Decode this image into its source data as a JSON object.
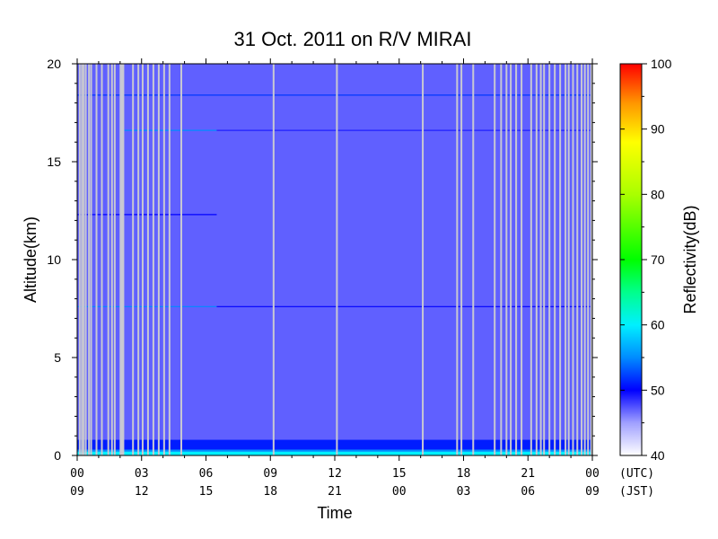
{
  "chart_data": {
    "type": "heatmap",
    "title": "31 Oct. 2011  on R/V MIRAI",
    "xlabel": "Time",
    "ylabel": "Altitude(km)",
    "colorbar_label": "Reflectivity(dB)",
    "x_utc_ticks": [
      "00",
      "03",
      "06",
      "09",
      "12",
      "15",
      "18",
      "21",
      "00"
    ],
    "x_jst_ticks": [
      "09",
      "12",
      "15",
      "18",
      "21",
      "00",
      "03",
      "06",
      "09"
    ],
    "x_tick_hours": [
      0,
      3,
      6,
      9,
      12,
      15,
      18,
      21,
      24
    ],
    "x_unit_utc": "(UTC)",
    "x_unit_jst": "(JST)",
    "xlim_hours": [
      0,
      24
    ],
    "ylim_km": [
      0,
      20
    ],
    "y_ticks": [
      0,
      5,
      10,
      15,
      20
    ],
    "y_tick_labels": [
      "0",
      "5",
      "10",
      "15",
      "20"
    ],
    "colorbar_ticks": [
      40,
      50,
      60,
      70,
      80,
      90,
      100
    ],
    "colorbar_tick_labels": [
      "40",
      "50",
      "60",
      "70",
      "80",
      "90",
      "100"
    ],
    "colorbar_range_db": [
      40,
      100
    ],
    "background_reflectivity_db": 47,
    "near_surface_layers": [
      {
        "bottom_km": 0.0,
        "top_km": 0.2,
        "reflectivity_db": 60
      },
      {
        "bottom_km": 0.2,
        "top_km": 0.3,
        "reflectivity_db": 55
      },
      {
        "bottom_km": 0.3,
        "top_km": 0.8,
        "reflectivity_db": 51
      }
    ],
    "horizontal_lines": [
      {
        "altitude_km": 18.4,
        "start_hour": 0,
        "end_hour": 24,
        "reflectivity_db": 52
      },
      {
        "altitude_km": 16.6,
        "start_hour": 2.2,
        "end_hour": 6.5,
        "reflectivity_db": 55
      },
      {
        "altitude_km": 16.6,
        "start_hour": 6.5,
        "end_hour": 24,
        "reflectivity_db": 49
      },
      {
        "altitude_km": 12.3,
        "start_hour": 0,
        "end_hour": 6.5,
        "reflectivity_db": 50
      },
      {
        "altitude_km": 7.6,
        "start_hour": 0,
        "end_hour": 6.5,
        "reflectivity_db": 55
      },
      {
        "altitude_km": 7.6,
        "start_hour": 6.5,
        "end_hour": 24,
        "reflectivity_db": 50
      }
    ],
    "missing_data_hours": [
      0.12,
      0.22,
      0.3,
      0.4,
      0.55,
      0.65,
      0.9,
      1.15,
      1.45,
      1.62,
      1.75,
      2.02,
      2.08,
      2.15,
      2.6,
      2.85,
      3.05,
      3.3,
      3.55,
      3.8,
      4.05,
      4.3,
      4.85,
      9.15,
      12.1,
      16.1,
      17.7,
      17.9,
      18.45,
      19.45,
      19.75,
      20.0,
      20.2,
      20.45,
      20.7,
      21.15,
      21.4,
      21.6,
      21.75,
      22.0,
      22.25,
      22.5,
      22.75,
      22.9,
      23.1,
      23.3,
      23.5,
      23.65,
      23.8,
      23.95
    ]
  }
}
